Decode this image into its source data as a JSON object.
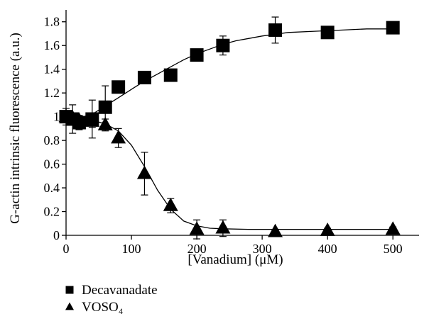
{
  "chart_data": {
    "type": "scatter",
    "title": "",
    "xlabel": "[Vanadium] (μM)",
    "ylabel": "G-actin intrinsic fluorescence (a.u.)",
    "xlim": [
      0,
      540
    ],
    "ylim": [
      0,
      1.9
    ],
    "xticks": [
      "0",
      "100",
      "200",
      "300",
      "400",
      "500"
    ],
    "yticks": [
      "0",
      "0.2",
      "0.4",
      "0.6",
      "0.8",
      "1",
      "1.2",
      "1.4",
      "1.6",
      "1.8"
    ],
    "grid": false,
    "legend_position": "bottom-left",
    "series": [
      {
        "name": "Decavanadate",
        "marker": "square",
        "color": "#000000",
        "points": [
          {
            "x": 0,
            "y": 1.0,
            "err": 0.07
          },
          {
            "x": 10,
            "y": 0.98,
            "err": 0.12
          },
          {
            "x": 20,
            "y": 0.95,
            "err": 0.06
          },
          {
            "x": 40,
            "y": 0.98,
            "err": 0.16
          },
          {
            "x": 60,
            "y": 1.08,
            "err": 0.18
          },
          {
            "x": 80,
            "y": 1.25,
            "err": 0.05
          },
          {
            "x": 120,
            "y": 1.33,
            "err": 0.03
          },
          {
            "x": 160,
            "y": 1.35,
            "err": 0.04
          },
          {
            "x": 200,
            "y": 1.52,
            "err": 0.04
          },
          {
            "x": 240,
            "y": 1.6,
            "err": 0.08
          },
          {
            "x": 320,
            "y": 1.73,
            "err": 0.11
          },
          {
            "x": 400,
            "y": 1.71,
            "err": 0.03
          },
          {
            "x": 500,
            "y": 1.75,
            "err": 0.03
          }
        ],
        "fit": [
          [
            0,
            0.97
          ],
          [
            20,
            0.99
          ],
          [
            40,
            1.02
          ],
          [
            60,
            1.09
          ],
          [
            80,
            1.16
          ],
          [
            100,
            1.23
          ],
          [
            120,
            1.3
          ],
          [
            140,
            1.36
          ],
          [
            160,
            1.42
          ],
          [
            180,
            1.48
          ],
          [
            200,
            1.53
          ],
          [
            220,
            1.57
          ],
          [
            240,
            1.61
          ],
          [
            260,
            1.64
          ],
          [
            280,
            1.66
          ],
          [
            300,
            1.68
          ],
          [
            340,
            1.71
          ],
          [
            380,
            1.72
          ],
          [
            420,
            1.73
          ],
          [
            460,
            1.74
          ],
          [
            500,
            1.74
          ]
        ]
      },
      {
        "name": "VOSO₄",
        "marker": "triangle",
        "color": "#000000",
        "points": [
          {
            "x": 0,
            "y": 1.0,
            "err": 0.05
          },
          {
            "x": 10,
            "y": 0.99,
            "err": 0.04
          },
          {
            "x": 20,
            "y": 0.97,
            "err": 0.04
          },
          {
            "x": 40,
            "y": 0.96,
            "err": 0.05
          },
          {
            "x": 60,
            "y": 0.93,
            "err": 0.05
          },
          {
            "x": 80,
            "y": 0.82,
            "err": 0.08
          },
          {
            "x": 120,
            "y": 0.52,
            "err": 0.18
          },
          {
            "x": 160,
            "y": 0.25,
            "err": 0.06
          },
          {
            "x": 200,
            "y": 0.05,
            "err": 0.08
          },
          {
            "x": 240,
            "y": 0.06,
            "err": 0.07
          },
          {
            "x": 320,
            "y": 0.03,
            "err": 0.02
          },
          {
            "x": 400,
            "y": 0.04,
            "err": 0.02
          },
          {
            "x": 500,
            "y": 0.05,
            "err": 0.02
          }
        ],
        "fit": [
          [
            0,
            0.98
          ],
          [
            40,
            0.97
          ],
          [
            60,
            0.94
          ],
          [
            80,
            0.88
          ],
          [
            100,
            0.76
          ],
          [
            120,
            0.58
          ],
          [
            140,
            0.38
          ],
          [
            160,
            0.22
          ],
          [
            180,
            0.12
          ],
          [
            200,
            0.08
          ],
          [
            220,
            0.06
          ],
          [
            240,
            0.055
          ],
          [
            280,
            0.05
          ],
          [
            340,
            0.05
          ],
          [
            420,
            0.05
          ],
          [
            500,
            0.05
          ]
        ]
      }
    ]
  }
}
